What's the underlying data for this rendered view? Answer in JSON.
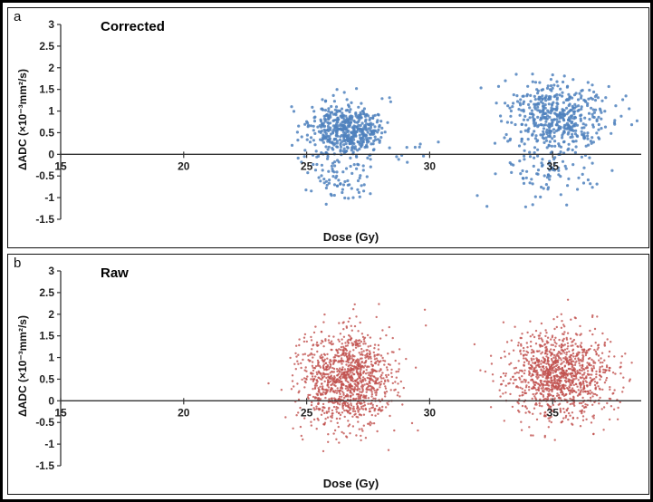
{
  "figure": {
    "panels": [
      {
        "label": "a",
        "title": "Corrected"
      },
      {
        "label": "b",
        "title": "Raw"
      }
    ]
  },
  "chart_data": [
    {
      "type": "scatter",
      "panel": "a",
      "title": "Corrected",
      "xlabel": "Dose (Gy)",
      "ylabel": "ΔADC (×10⁻³mm²/s)",
      "xlim": [
        15,
        38.6
      ],
      "ylim": [
        -1.5,
        3
      ],
      "x_ticks": [
        15,
        20,
        25,
        30,
        35
      ],
      "y_ticks": [
        3,
        2.5,
        2,
        1.5,
        1,
        0.5,
        0,
        -0.5,
        -1,
        -1.5
      ],
      "grid": false,
      "legend": "none",
      "point_color": "#4F81BD",
      "point_size": 1.6,
      "point_opacity": 0.85,
      "seed": 7,
      "clusters": [
        {
          "n": 480,
          "x_mean": 26.6,
          "x_sd": 0.75,
          "y_mean": 0.55,
          "y_sd": 0.32
        },
        {
          "n": 85,
          "x_mean": 26.4,
          "x_sd": 0.7,
          "y_mean": -0.5,
          "y_sd": 0.35
        },
        {
          "n": 10,
          "x_mean": 29.4,
          "x_sd": 0.45,
          "y_mean": 0.1,
          "y_sd": 0.12
        },
        {
          "n": 470,
          "x_mean": 35.2,
          "x_sd": 1.0,
          "y_mean": 0.9,
          "y_sd": 0.38
        },
        {
          "n": 95,
          "x_mean": 35.0,
          "x_sd": 1.1,
          "y_mean": -0.35,
          "y_sd": 0.38
        }
      ]
    },
    {
      "type": "scatter",
      "panel": "b",
      "title": "Raw",
      "xlabel": "Dose (Gy)",
      "ylabel": "ΔADC (×10⁻³mm²/s)",
      "xlim": [
        15,
        38.6
      ],
      "ylim": [
        -1.5,
        3
      ],
      "grid": false,
      "legend": "none",
      "x_ticks": [
        15,
        20,
        25,
        30,
        35
      ],
      "y_ticks": [
        3,
        2.5,
        2,
        1.5,
        1,
        0.5,
        0,
        -0.5,
        -1,
        -1.5
      ],
      "point_color": "#C0504D",
      "point_size": 1.2,
      "point_opacity": 0.8,
      "seed": 13,
      "clusters": [
        {
          "n": 1150,
          "x_mean": 26.7,
          "x_sd": 0.95,
          "y_mean": 0.5,
          "y_sd": 0.55
        },
        {
          "n": 1150,
          "x_mean": 35.3,
          "x_sd": 1.05,
          "y_mean": 0.6,
          "y_sd": 0.5
        }
      ]
    }
  ]
}
